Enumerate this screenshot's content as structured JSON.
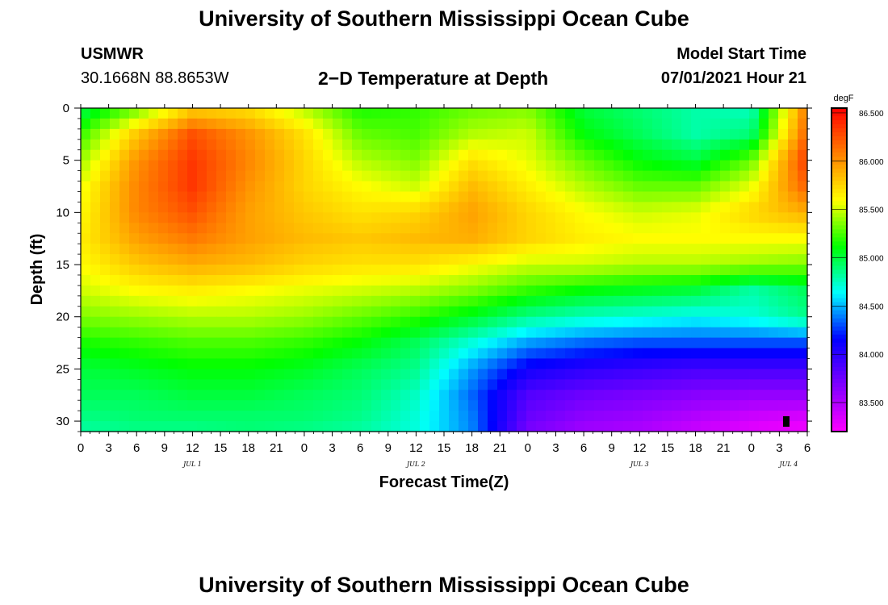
{
  "header": {
    "title_top": "University of Southern Mississippi Ocean Cube",
    "station": "USMWR",
    "coords": "30.1668N  88.8653W",
    "subtitle": "2−D Temperature at Depth",
    "model_start_label": "Model Start Time",
    "model_start_value": "07/01/2021 Hour 21",
    "title_bottom": "University of Southern Mississippi Ocean Cube"
  },
  "chart_data": {
    "type": "heatmap",
    "title": "2−D Temperature at Depth",
    "xlabel": "Forecast Time(Z)",
    "ylabel": "Depth (ft)",
    "x_tick_labels": [
      "0",
      "3",
      "6",
      "9",
      "12",
      "15",
      "18",
      "21",
      "0",
      "3",
      "6",
      "9",
      "12",
      "15",
      "18",
      "21",
      "0",
      "3",
      "6",
      "9",
      "12",
      "15",
      "18",
      "21",
      "0",
      "3",
      "6"
    ],
    "x_range_hours": [
      0,
      78
    ],
    "date_labels": [
      {
        "text": "JUL 1",
        "hour": 12
      },
      {
        "text": "JUL 2",
        "hour": 36
      },
      {
        "text": "JUL 3",
        "hour": 60
      },
      {
        "text": "JUL 4",
        "hour": 76
      }
    ],
    "y_ticks": [
      0,
      5,
      10,
      15,
      20,
      25,
      30
    ],
    "y_range_ft": [
      0,
      31
    ],
    "colorbar": {
      "unit": "degF",
      "ticks": [
        "86.500",
        "86.000",
        "85.500",
        "85.000",
        "84.500",
        "84.000",
        "83.500"
      ],
      "range": [
        83.2,
        86.55
      ],
      "colors": [
        "#ff00ff",
        "#8000ff",
        "#0000ff",
        "#00ffff",
        "#00ff00",
        "#ffff00",
        "#ff8000",
        "#ff0000"
      ]
    },
    "temperature_grid_degF": {
      "depths_ft": [
        0,
        2.5,
        5,
        7.5,
        10,
        12.5,
        15,
        17.5,
        20,
        22.5,
        25,
        27.5,
        30,
        31
      ],
      "hours": [
        0,
        6,
        12,
        18,
        24,
        30,
        36,
        42,
        48,
        54,
        60,
        66,
        72,
        78
      ],
      "values": [
        [
          84.95,
          85.3,
          85.75,
          85.7,
          85.45,
          85.15,
          85.2,
          85.3,
          85.35,
          85.0,
          84.9,
          84.8,
          84.75,
          86.1
        ],
        [
          85.2,
          85.8,
          86.25,
          86.0,
          85.7,
          85.3,
          85.25,
          85.45,
          85.5,
          85.1,
          84.95,
          84.8,
          84.9,
          86.2
        ],
        [
          85.4,
          86.0,
          86.35,
          86.05,
          85.75,
          85.45,
          85.35,
          85.7,
          85.55,
          85.3,
          85.1,
          85.0,
          85.3,
          86.35
        ],
        [
          85.55,
          86.05,
          86.35,
          86.0,
          85.75,
          85.6,
          85.5,
          85.85,
          85.65,
          85.45,
          85.3,
          85.3,
          85.55,
          86.2
        ],
        [
          85.6,
          86.05,
          86.25,
          85.95,
          85.8,
          85.7,
          85.75,
          85.95,
          85.75,
          85.6,
          85.5,
          85.55,
          85.75,
          85.9
        ],
        [
          85.65,
          85.95,
          86.1,
          85.95,
          85.85,
          85.8,
          85.85,
          85.9,
          85.75,
          85.65,
          85.6,
          85.6,
          85.6,
          85.6
        ],
        [
          85.6,
          85.8,
          85.9,
          85.85,
          85.75,
          85.7,
          85.7,
          85.6,
          85.5,
          85.5,
          85.45,
          85.45,
          85.4,
          85.35
        ],
        [
          85.5,
          85.6,
          85.65,
          85.6,
          85.55,
          85.5,
          85.45,
          85.35,
          85.2,
          85.1,
          85.05,
          85.0,
          84.8,
          84.95
        ],
        [
          85.35,
          85.4,
          85.45,
          85.45,
          85.4,
          85.3,
          85.2,
          85.05,
          84.85,
          84.75,
          84.7,
          84.65,
          84.7,
          84.85
        ],
        [
          85.15,
          85.2,
          85.25,
          85.25,
          85.2,
          85.1,
          84.95,
          84.7,
          84.45,
          84.35,
          84.3,
          84.3,
          84.3,
          84.3
        ],
        [
          85.0,
          85.05,
          85.1,
          85.1,
          85.05,
          84.95,
          84.85,
          84.45,
          84.1,
          84.0,
          83.95,
          83.9,
          83.9,
          83.9
        ],
        [
          84.95,
          84.95,
          85.0,
          85.0,
          84.95,
          84.9,
          84.75,
          84.35,
          83.85,
          83.75,
          83.7,
          83.65,
          83.6,
          83.6
        ],
        [
          84.85,
          84.9,
          84.9,
          84.9,
          84.9,
          84.85,
          84.7,
          84.4,
          83.75,
          83.6,
          83.55,
          83.45,
          83.35,
          83.3
        ],
        [
          84.8,
          84.85,
          84.85,
          84.9,
          84.85,
          84.8,
          84.7,
          84.4,
          83.7,
          83.55,
          83.5,
          83.4,
          83.3,
          83.25
        ]
      ]
    }
  }
}
